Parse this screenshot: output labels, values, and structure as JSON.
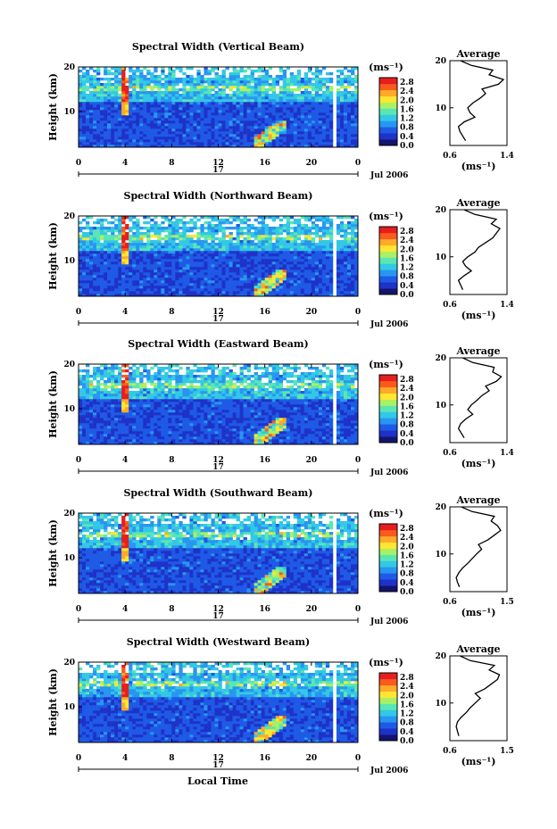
{
  "chart_data": [
    {
      "type": "heatmap",
      "title": "Spectral Width (Vertical Beam)",
      "ylabel": "Height (km)",
      "x_ticks": [
        "0",
        "4",
        "8",
        "12",
        "16",
        "20",
        "0"
      ],
      "y_ticks": [
        "20",
        "10"
      ],
      "xlim": [
        0,
        24
      ],
      "ylim": [
        2,
        20
      ],
      "day_label": "17",
      "month_label": "Jul 2006",
      "colorbar": {
        "unit": "(ms⁻¹)",
        "ticks": [
          "2.8",
          "2.4",
          "2.0",
          "1.6",
          "1.2",
          "0.8",
          "0.4",
          "0.0"
        ],
        "range": [
          0,
          3.0
        ]
      },
      "profile": {
        "title": "Average",
        "x_ticks": [
          "0.6",
          "1.4"
        ],
        "xlim": [
          0.6,
          1.4
        ],
        "xlabel": "(ms⁻¹)",
        "y_ticks": [
          "20",
          "10"
        ],
        "heights": [
          3,
          4,
          5,
          6,
          7,
          8,
          9,
          10,
          11,
          12,
          13,
          14,
          15,
          16,
          17,
          18,
          19,
          20
        ],
        "values": [
          0.82,
          0.78,
          0.74,
          0.72,
          0.8,
          0.95,
          0.88,
          0.85,
          0.92,
          1.02,
          1.1,
          1.05,
          1.28,
          1.35,
          1.15,
          1.2,
          0.9,
          0.75
        ]
      }
    },
    {
      "type": "heatmap",
      "title": "Spectral Width (Northward Beam)",
      "ylabel": "Height (km)",
      "x_ticks": [
        "0",
        "4",
        "8",
        "12",
        "16",
        "20",
        "0"
      ],
      "y_ticks": [
        "20",
        "10"
      ],
      "xlim": [
        0,
        24
      ],
      "ylim": [
        2,
        20
      ],
      "day_label": "17",
      "month_label": "Jul 2006",
      "colorbar": {
        "unit": "(ms⁻¹)",
        "ticks": [
          "2.8",
          "2.4",
          "2.0",
          "1.6",
          "1.2",
          "0.8",
          "0.4",
          "0.0"
        ],
        "range": [
          0,
          3.0
        ]
      },
      "profile": {
        "title": "Average",
        "x_ticks": [
          "0.6",
          "1.4"
        ],
        "xlim": [
          0.6,
          1.4
        ],
        "xlabel": "(ms⁻¹)",
        "y_ticks": [
          "20",
          "10"
        ],
        "heights": [
          3,
          4,
          5,
          6,
          7,
          8,
          9,
          10,
          11,
          12,
          13,
          14,
          15,
          16,
          17,
          18,
          19,
          20
        ],
        "values": [
          0.78,
          0.75,
          0.72,
          0.8,
          0.9,
          0.82,
          0.78,
          0.85,
          0.95,
          1.0,
          1.1,
          1.2,
          1.25,
          1.3,
          1.18,
          1.25,
          0.95,
          0.8
        ]
      }
    },
    {
      "type": "heatmap",
      "title": "Spectral Width (Eastward Beam)",
      "ylabel": "Height (km)",
      "x_ticks": [
        "0",
        "4",
        "8",
        "12",
        "16",
        "20",
        "0"
      ],
      "y_ticks": [
        "20",
        "10"
      ],
      "xlim": [
        0,
        24
      ],
      "ylim": [
        2,
        20
      ],
      "day_label": "17",
      "month_label": "Jul 2006",
      "colorbar": {
        "unit": "(ms⁻¹)",
        "ticks": [
          "2.8",
          "2.4",
          "2.0",
          "1.6",
          "1.2",
          "0.8",
          "0.4",
          "0.0"
        ],
        "range": [
          0,
          3.0
        ]
      },
      "profile": {
        "title": "Average",
        "x_ticks": [
          "0.6",
          "1.4"
        ],
        "xlim": [
          0.6,
          1.4
        ],
        "xlabel": "(ms⁻¹)",
        "y_ticks": [
          "20",
          "10"
        ],
        "heights": [
          3,
          4,
          5,
          6,
          7,
          8,
          9,
          10,
          11,
          12,
          13,
          14,
          15,
          16,
          17,
          18,
          19,
          20
        ],
        "values": [
          0.8,
          0.76,
          0.72,
          0.75,
          0.82,
          0.92,
          0.85,
          0.9,
          0.98,
          1.05,
          1.15,
          1.1,
          1.25,
          1.32,
          1.2,
          1.22,
          0.92,
          0.78
        ]
      }
    },
    {
      "type": "heatmap",
      "title": "Spectral Width (Southward Beam)",
      "ylabel": "Height (km)",
      "x_ticks": [
        "0",
        "4",
        "8",
        "12",
        "16",
        "20",
        "0"
      ],
      "y_ticks": [
        "20",
        "10"
      ],
      "xlim": [
        0,
        24
      ],
      "ylim": [
        2,
        20
      ],
      "day_label": "17",
      "month_label": "Jul 2006",
      "colorbar": {
        "unit": "(ms⁻¹)",
        "ticks": [
          "2.8",
          "2.4",
          "2.0",
          "1.6",
          "1.2",
          "0.8",
          "0.4",
          "0.0"
        ],
        "range": [
          0,
          3.0
        ]
      },
      "profile": {
        "title": "Average",
        "x_ticks": [
          "0.6",
          "1.5"
        ],
        "xlim": [
          0.6,
          1.5
        ],
        "xlabel": "(ms⁻¹)",
        "y_ticks": [
          "20",
          "10"
        ],
        "heights": [
          3,
          4,
          5,
          6,
          7,
          8,
          9,
          10,
          11,
          12,
          13,
          14,
          15,
          16,
          17,
          18,
          19,
          20
        ],
        "values": [
          0.75,
          0.72,
          0.7,
          0.74,
          0.8,
          0.88,
          0.95,
          1.02,
          1.1,
          1.05,
          1.2,
          1.3,
          1.4,
          1.35,
          1.25,
          1.3,
          0.95,
          0.78
        ]
      }
    },
    {
      "type": "heatmap",
      "title": "Spectral Width (Westward Beam)",
      "ylabel": "Height (km)",
      "x_ticks": [
        "0",
        "4",
        "8",
        "12",
        "16",
        "20",
        "0"
      ],
      "y_ticks": [
        "20",
        "10"
      ],
      "xlim": [
        0,
        24
      ],
      "ylim": [
        2,
        20
      ],
      "day_label": "17",
      "month_label": "Jul 2006",
      "colorbar": {
        "unit": "(ms⁻¹)",
        "ticks": [
          "2.8",
          "2.4",
          "2.0",
          "1.6",
          "1.2",
          "0.8",
          "0.4",
          "0.0"
        ],
        "range": [
          0,
          3.0
        ]
      },
      "profile": {
        "title": "Average",
        "x_ticks": [
          "0.6",
          "1.5"
        ],
        "xlim": [
          0.6,
          1.5
        ],
        "xlabel": "(ms⁻¹)",
        "y_ticks": [
          "20",
          "10"
        ],
        "heights": [
          3,
          4,
          5,
          6,
          7,
          8,
          9,
          10,
          11,
          12,
          13,
          14,
          15,
          16,
          17,
          18,
          19,
          20
        ],
        "values": [
          0.74,
          0.72,
          0.7,
          0.72,
          0.78,
          0.86,
          0.92,
          1.0,
          1.08,
          1.0,
          1.15,
          1.25,
          1.35,
          1.38,
          1.22,
          1.3,
          0.92,
          0.76
        ]
      }
    }
  ],
  "shared_xlabel": "Local Time",
  "colormap": [
    "#14146e",
    "#1e32c8",
    "#1e5ae6",
    "#2896f0",
    "#32c8e6",
    "#5ae6b4",
    "#aaf064",
    "#ffe632",
    "#ffaa28",
    "#fa5a1e",
    "#e61e1e"
  ]
}
